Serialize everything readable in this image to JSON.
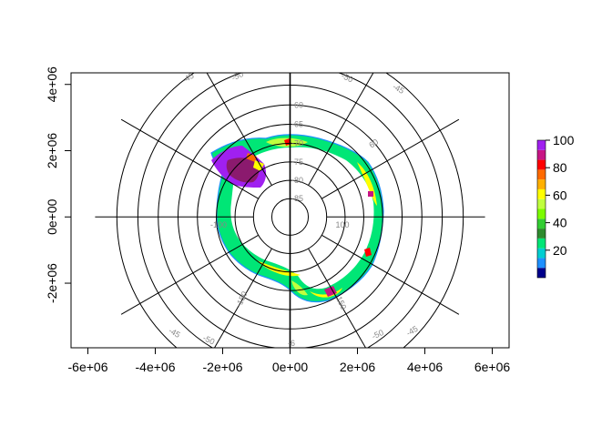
{
  "map": {
    "projection": "south-polar-stereographic",
    "x_ticks": [
      "-6e+06",
      "-4e+06",
      "-2e+06",
      "0e+00",
      "2e+06",
      "4e+06",
      "6e+06"
    ],
    "y_ticks": [
      "-2e+06",
      "0e+00",
      "2e+06",
      "4e+06"
    ],
    "x_tick_values": [
      -6000000,
      -4000000,
      -2000000,
      0,
      2000000,
      4000000,
      6000000
    ],
    "y_tick_values": [
      -2000000,
      0,
      2000000,
      4000000
    ],
    "xlim": [
      -6500000,
      6500000
    ],
    "ylim": [
      -3950000,
      4350000
    ],
    "latitude_circles": [
      -85,
      -80,
      -75,
      -70,
      -65,
      -60,
      -55,
      -50,
      -45
    ],
    "latitude_labels": [
      "-85",
      "-80",
      "-75",
      "-70",
      "-65",
      "-60",
      "-50",
      "-45",
      "-50",
      "-45",
      "-50",
      "-45",
      "-50",
      "-45"
    ],
    "meridian_labels": [
      "-100",
      "100",
      "-150",
      "150",
      "60",
      "-6"
    ],
    "color_scale": {
      "min": 0,
      "max": 100,
      "ticks": [
        "20",
        "40",
        "60",
        "80",
        "100"
      ],
      "tick_values": [
        20,
        40,
        60,
        80,
        100
      ],
      "colors": [
        "#00008b",
        "#1e90ff",
        "#00ced1",
        "#00e676",
        "#2e8b2e",
        "#32cd32",
        "#7cfc00",
        "#c0ff3e",
        "#ffff00",
        "#ffb000",
        "#ff6a00",
        "#ff0000",
        "#c71585",
        "#a020f0"
      ]
    }
  }
}
